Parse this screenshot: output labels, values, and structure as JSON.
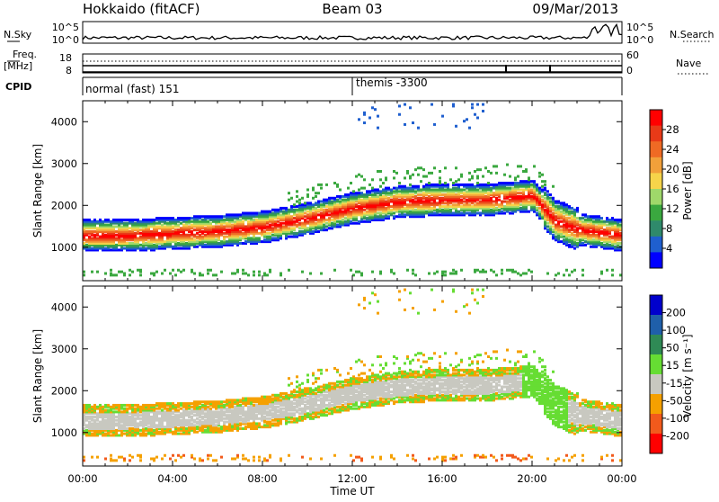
{
  "header": {
    "station": "Hokkaido (fitACF)",
    "beam": "Beam 03",
    "date": "09/Mar/2013"
  },
  "strips": {
    "nsky_label": "N.Sky",
    "nsky_ticks": [
      "10^5",
      "10^0"
    ],
    "nsearch_label": "N.Search",
    "nsearch_ticks": [
      "10^5",
      "10^0"
    ],
    "freq_label_top": "Freq.",
    "freq_label_bottom": "[MHz]",
    "freq_ticks": [
      "18",
      "8"
    ],
    "nave_label": "Nave",
    "nave_ticks": [
      "60",
      "0"
    ],
    "cpid_label": "CPID",
    "cpid_segments": [
      {
        "label": "normal (fast) 151",
        "start_hour": 0
      },
      {
        "label": "themis -3300",
        "start_hour": 12
      }
    ]
  },
  "x_axis": {
    "label": "Time UT",
    "ticks": [
      "00:00",
      "04:00",
      "08:00",
      "12:00",
      "16:00",
      "20:00",
      "00:00"
    ]
  },
  "chart_data": [
    {
      "type": "heatmap",
      "title": "",
      "xlabel": "Time UT",
      "ylabel": "Slant Range [km]",
      "x_range_hours": [
        0,
        24
      ],
      "ylim": [
        200,
        4500
      ],
      "y_ticks": [
        "1000",
        "2000",
        "3000",
        "4000"
      ],
      "colorbar": {
        "label": "Power [dB]",
        "ticks": [
          "28",
          "24",
          "20",
          "16",
          "12",
          "8",
          "4"
        ],
        "range": [
          0,
          32
        ],
        "colors": [
          "#0000ff",
          "#1f5fcf",
          "#2f8a6b",
          "#3aa83f",
          "#9fd86a",
          "#f6d44a",
          "#f2a03a",
          "#ef6a24",
          "#e83a18",
          "#ff0000"
        ]
      },
      "main_echo_band": {
        "hours": [
          0,
          2,
          4,
          6,
          8,
          10,
          12,
          14,
          16,
          18,
          20,
          21,
          22,
          24
        ],
        "center_km": [
          1250,
          1250,
          1300,
          1350,
          1450,
          1650,
          1900,
          2050,
          2100,
          2100,
          2200,
          1600,
          1400,
          1250
        ]
      }
    },
    {
      "type": "heatmap",
      "title": "",
      "xlabel": "Time UT",
      "ylabel": "Slant Range [km]",
      "x_range_hours": [
        0,
        24
      ],
      "ylim": [
        200,
        4500
      ],
      "y_ticks": [
        "1000",
        "2000",
        "3000",
        "4000"
      ],
      "colorbar": {
        "label": "Velocity [m s⁻¹]",
        "ticks": [
          "200",
          "100",
          "50",
          "15",
          "-15",
          "-50",
          "-100",
          "-200"
        ],
        "range": [
          -250,
          250
        ],
        "colors": [
          "#ff0000",
          "#f25a1c",
          "#f5a000",
          "#c8c8c0",
          "#66dd33",
          "#2f8a55",
          "#1f5faa",
          "#0000cc"
        ]
      }
    }
  ]
}
